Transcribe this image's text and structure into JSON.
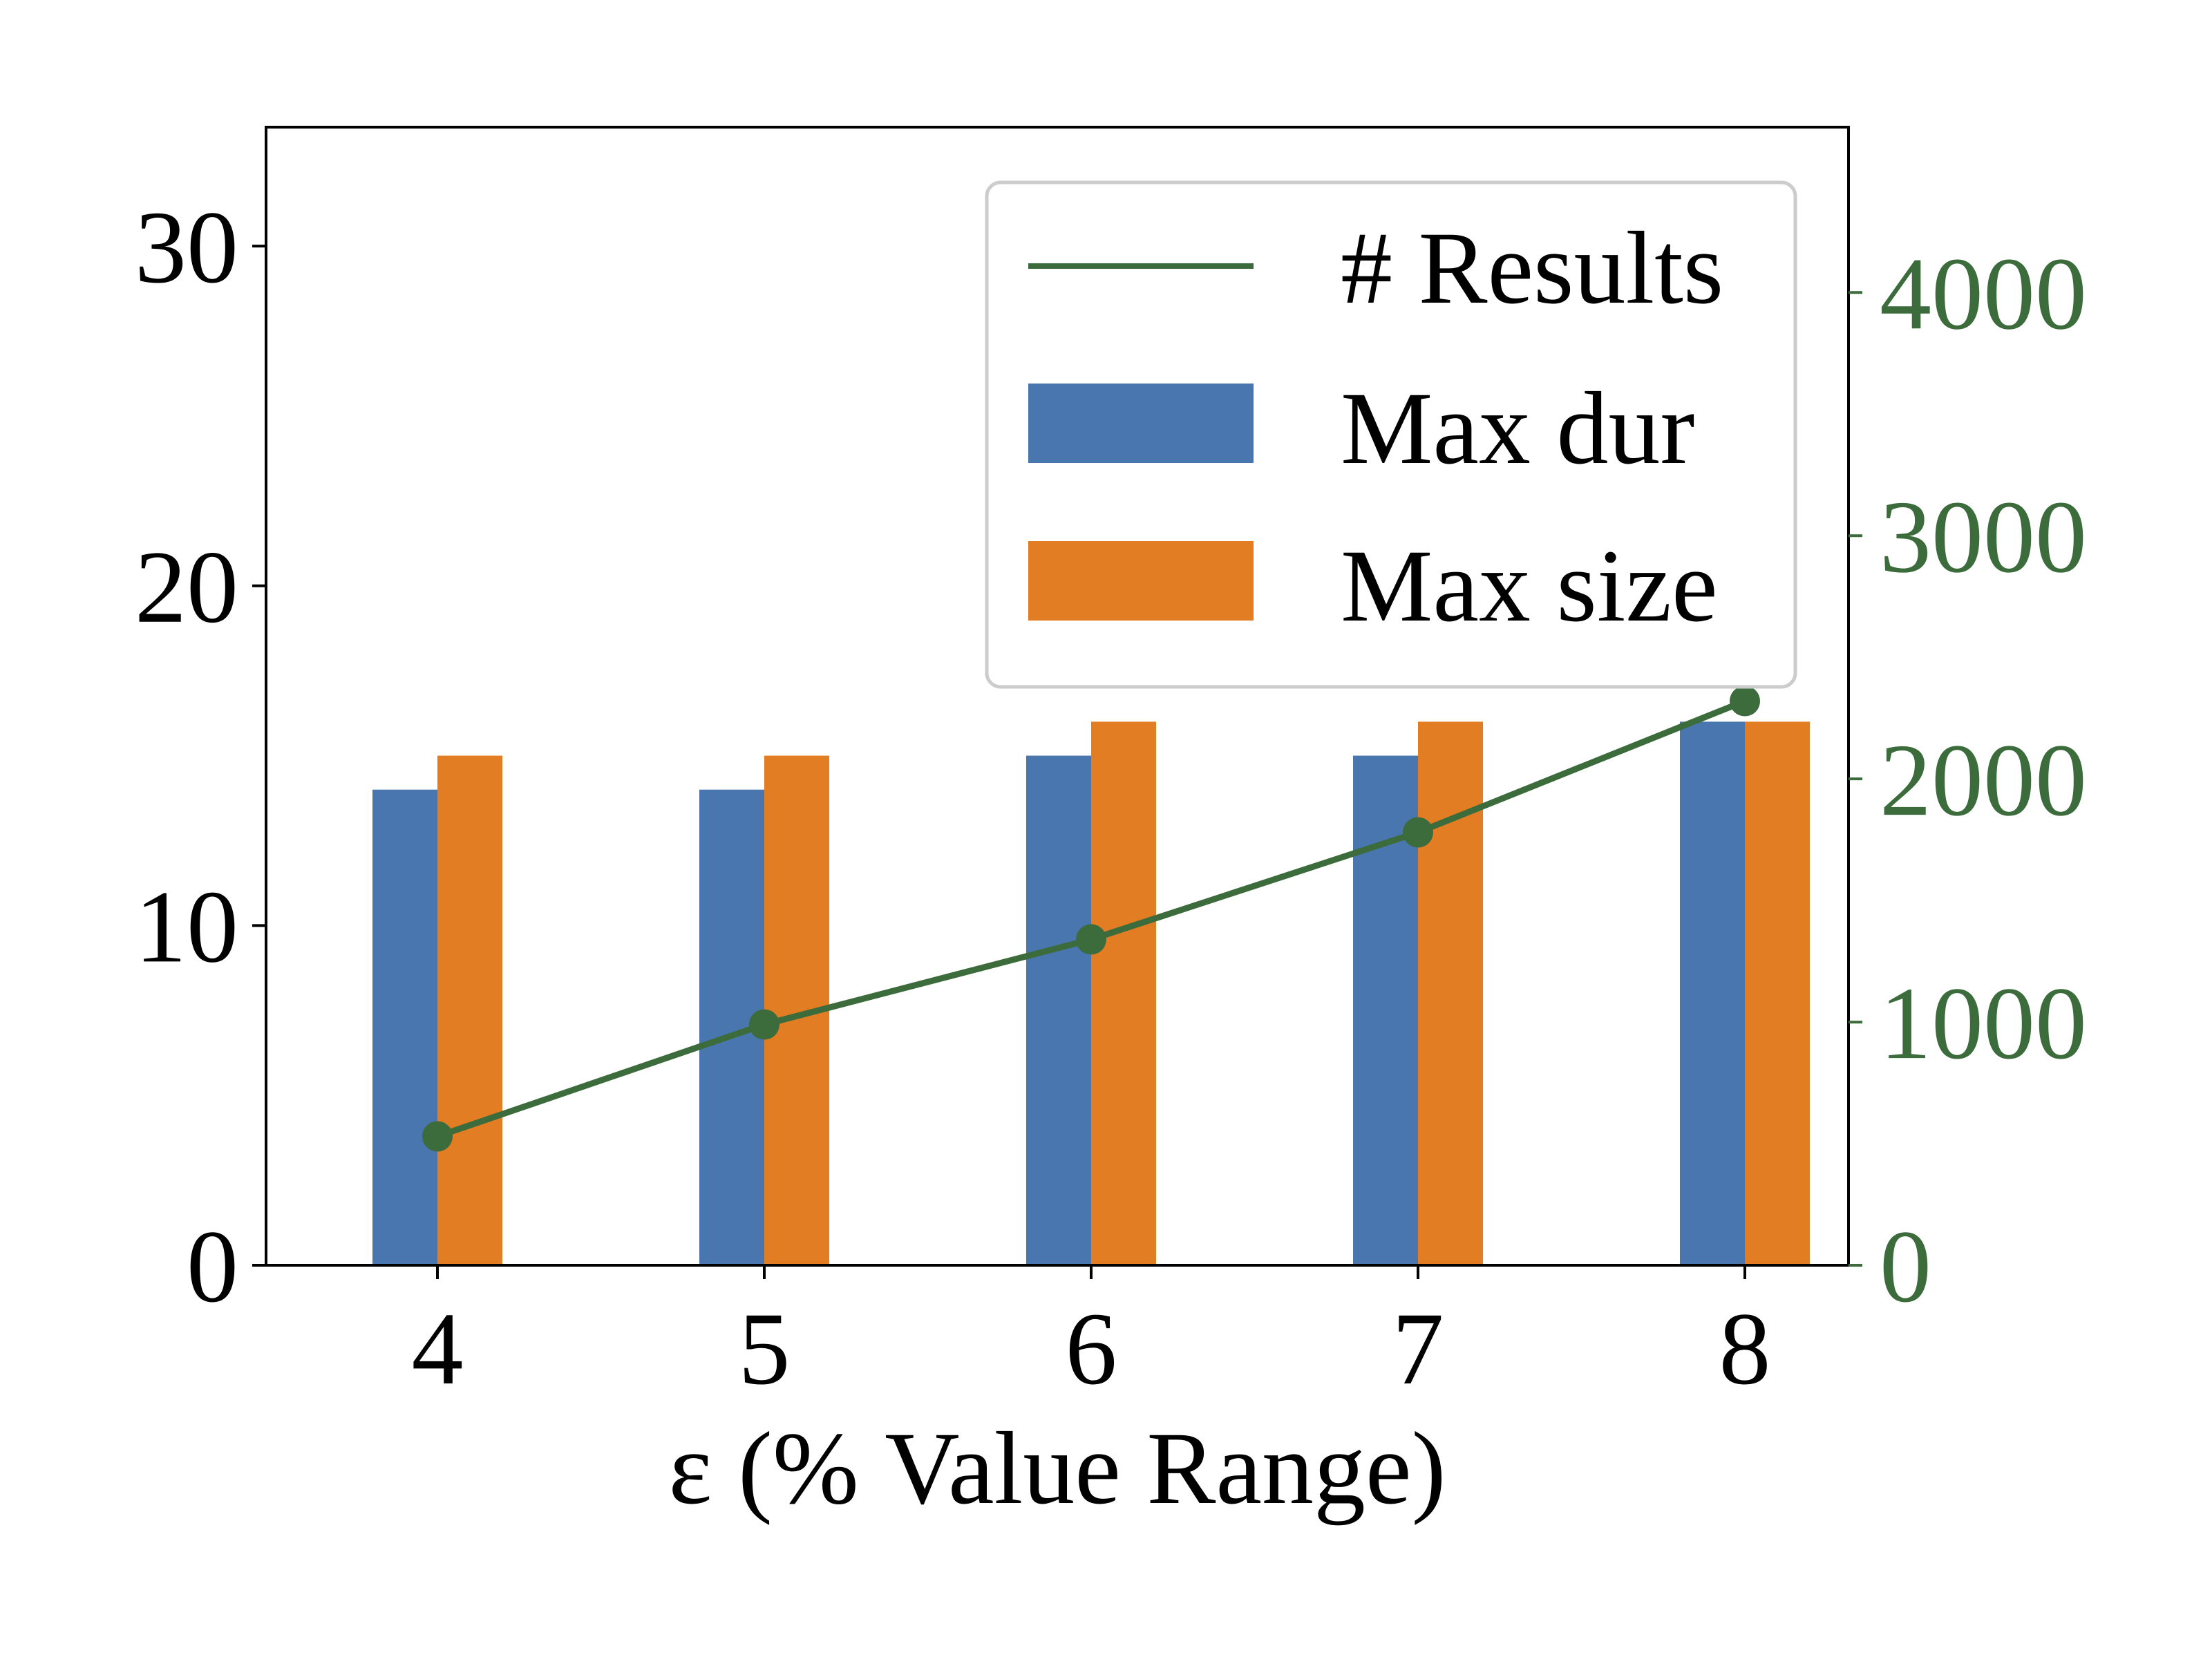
{
  "chart_data": {
    "type": "bar",
    "xlabel": "ε (% Value Range)",
    "categories": [
      "4",
      "5",
      "6",
      "7",
      "8"
    ],
    "ylim_left": [
      0,
      33.5
    ],
    "yticks_left": [
      "0",
      "10",
      "20",
      "30"
    ],
    "ylim_right": [
      0,
      4680
    ],
    "yticks_right": [
      "0",
      "1000",
      "2000",
      "3000",
      "4000"
    ],
    "legend_position": "upper right",
    "grid": false,
    "series": [
      {
        "name": "Max dur",
        "type": "bar",
        "axis": "left",
        "color": "#4a76b0",
        "values": [
          14,
          14,
          15,
          15,
          16
        ]
      },
      {
        "name": "Max size",
        "type": "bar",
        "axis": "left",
        "color": "#e37d24",
        "values": [
          15,
          15,
          16,
          16,
          16
        ]
      },
      {
        "name": "# Results",
        "type": "line",
        "axis": "right",
        "color": "#3c6b3c",
        "values": [
          530,
          990,
          1340,
          1780,
          2320
        ]
      }
    ],
    "legend_order": [
      "# Results",
      "Max dur",
      "Max size"
    ]
  }
}
